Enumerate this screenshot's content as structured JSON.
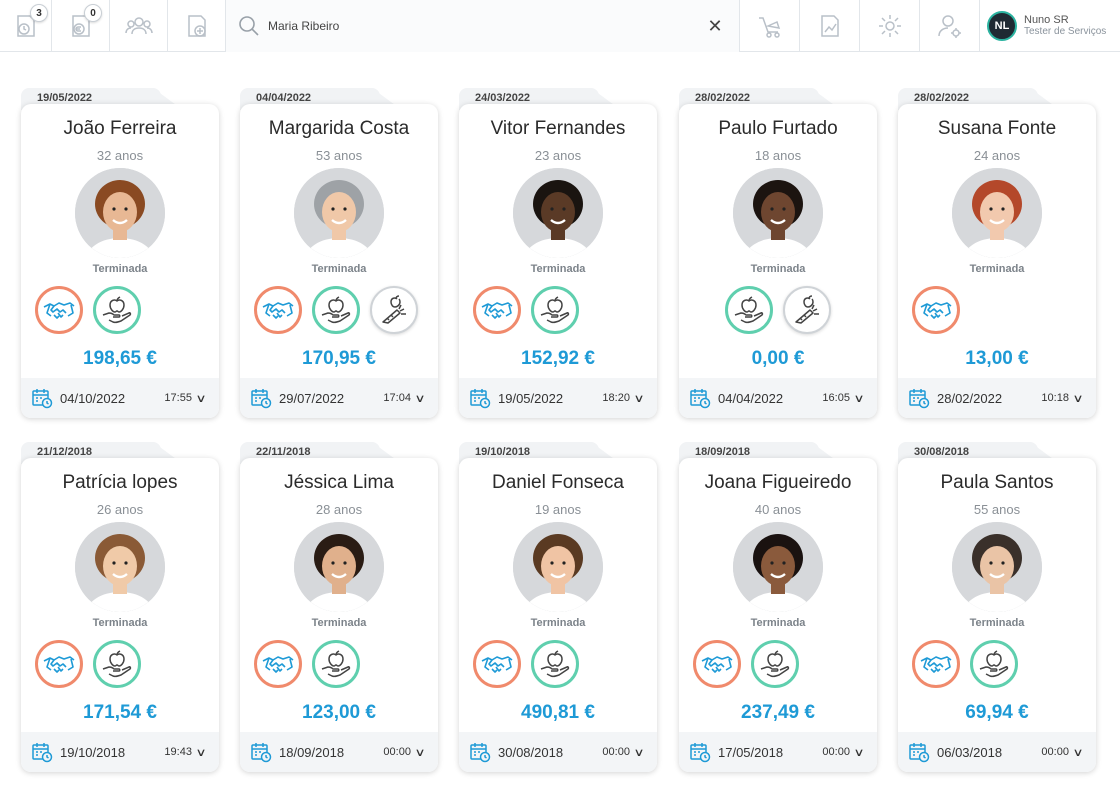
{
  "topbar": {
    "badges": [
      "3",
      "0"
    ],
    "search_value": "Maria Ribeiro",
    "user": {
      "initials": "NL",
      "name": "Nuno SR",
      "role": "Tester de Serviços"
    }
  },
  "cards": [
    {
      "tab_date": "19/05/2022",
      "name": "João Ferreira",
      "age": "32 anos",
      "status": "Terminada",
      "amount": "198,65 €",
      "date": "04/10/2022",
      "time": "17:55",
      "services": [
        "handshake",
        "nutrition"
      ],
      "skin": "#e8b894",
      "hair": "#8a4a22"
    },
    {
      "tab_date": "04/04/2022",
      "name": "Margarida Costa",
      "age": "53 anos",
      "status": "Terminada",
      "amount": "170,95 €",
      "date": "29/07/2022",
      "time": "17:04",
      "services": [
        "handshake",
        "nutrition",
        "vegetables"
      ],
      "skin": "#f0c8a8",
      "hair": "#9ea2a6"
    },
    {
      "tab_date": "24/03/2022",
      "name": "Vitor Fernandes",
      "age": "23 anos",
      "status": "Terminada",
      "amount": "152,92 €",
      "date": "19/05/2022",
      "time": "18:20",
      "services": [
        "handshake",
        "nutrition"
      ],
      "skin": "#5a3a26",
      "hair": "#1a1410"
    },
    {
      "tab_date": "28/02/2022",
      "name": "Paulo Furtado",
      "age": "18 anos",
      "status": "Terminada",
      "amount": "0,00 €",
      "date": "04/04/2022",
      "time": "16:05",
      "services": [
        "nutrition",
        "vegetables"
      ],
      "skin": "#6e4630",
      "hair": "#1c1410"
    },
    {
      "tab_date": "28/02/2022",
      "name": "Susana Fonte",
      "age": "24 anos",
      "status": "Terminada",
      "amount": "13,00 €",
      "date": "28/02/2022",
      "time": "10:18",
      "services": [
        "handshake"
      ],
      "skin": "#f2c9ae",
      "hair": "#b4482a"
    },
    {
      "tab_date": "21/12/2018",
      "name": "Patrícia lopes",
      "age": "26 anos",
      "status": "Terminada",
      "amount": "171,54 €",
      "date": "19/10/2018",
      "time": "19:43",
      "services": [
        "handshake",
        "nutrition"
      ],
      "skin": "#f0caa8",
      "hair": "#8a5a36"
    },
    {
      "tab_date": "22/11/2018",
      "name": "Jéssica Lima",
      "age": "28 anos",
      "status": "Terminada",
      "amount": "123,00 €",
      "date": "18/09/2018",
      "time": "00:00",
      "services": [
        "handshake",
        "nutrition"
      ],
      "skin": "#e0b08c",
      "hair": "#2a1c14"
    },
    {
      "tab_date": "19/10/2018",
      "name": "Daniel Fonseca",
      "age": "19 anos",
      "status": "Terminada",
      "amount": "490,81 €",
      "date": "30/08/2018",
      "time": "00:00",
      "services": [
        "handshake",
        "nutrition"
      ],
      "skin": "#f0c4a4",
      "hair": "#5a3a22"
    },
    {
      "tab_date": "18/09/2018",
      "name": "Joana Figueiredo",
      "age": "40 anos",
      "status": "Terminada",
      "amount": "237,49 €",
      "date": "17/05/2018",
      "time": "00:00",
      "services": [
        "handshake",
        "nutrition"
      ],
      "skin": "#8a5a3c",
      "hair": "#1a1210"
    },
    {
      "tab_date": "30/08/2018",
      "name": "Paula Santos",
      "age": "55 anos",
      "status": "Terminada",
      "amount": "69,94 €",
      "date": "06/03/2018",
      "time": "00:00",
      "services": [
        "handshake",
        "nutrition"
      ],
      "skin": "#eac4a6",
      "hair": "#3a302a"
    }
  ],
  "colors": {
    "accent": "#1e9ad6",
    "handshake_ring": "#f08a6c",
    "nutrition_ring": "#5fcfae"
  }
}
